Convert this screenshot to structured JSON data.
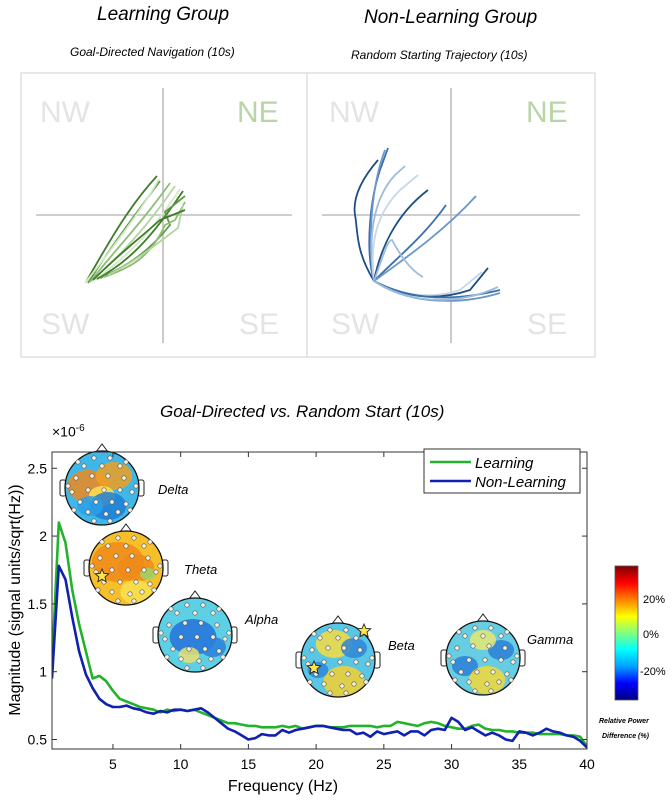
{
  "top": {
    "left": {
      "group_title": "Learning Group",
      "subtitle": "Goal-Directed Navigation (10s)",
      "quadrants": [
        "NW",
        "NE",
        "SW",
        "SE"
      ],
      "goal_quadrant": "NE",
      "trajectory_colors": [
        "#3f7d2a",
        "#5e9a45",
        "#8dbd74",
        "#b3d5a1",
        "#d5e8c9"
      ]
    },
    "right": {
      "group_title": "Non-Learning Group",
      "subtitle": "Random Starting Trajectory (10s)",
      "quadrants": [
        "NW",
        "NE",
        "SW",
        "SE"
      ],
      "goal_quadrant": "NE",
      "trajectory_colors": [
        "#1f4e84",
        "#3b6fa8",
        "#6a97c7",
        "#9dbbdc",
        "#c6d7ea"
      ]
    },
    "quadrant_label_color": "#e4e4e4",
    "goal_label_color": "#b7d6a6"
  },
  "chart_data": {
    "type": "line",
    "title": "Goal-Directed vs. Random Start (10s)",
    "xlabel": "Frequency (Hz)",
    "ylabel": "Magnitude   (signal units/sqrt(Hz))",
    "y_multiplier": "×10",
    "y_exponent": "-6",
    "xlim": [
      0.5,
      40
    ],
    "ylim": [
      0.43,
      2.62
    ],
    "xticks": [
      5,
      10,
      15,
      20,
      25,
      30,
      35,
      40
    ],
    "yticks": [
      0.5,
      1,
      1.5,
      2,
      2.5
    ],
    "ytick_labels": [
      "0.5",
      "1",
      "1.5",
      "2",
      "2.5"
    ],
    "legend_position": "top-right",
    "x": [
      0.5,
      1,
      1.5,
      2,
      2.5,
      3,
      3.5,
      4,
      4.5,
      5,
      5.5,
      6,
      6.5,
      7,
      7.5,
      8,
      8.5,
      9,
      9.5,
      10,
      10.5,
      11,
      11.5,
      12,
      12.5,
      13,
      13.5,
      14,
      14.5,
      15,
      15.5,
      16,
      16.5,
      17,
      17.5,
      18,
      18.5,
      19,
      19.5,
      20,
      20.5,
      21,
      21.5,
      22,
      22.5,
      23,
      23.5,
      24,
      24.5,
      25,
      25.5,
      26,
      26.5,
      27,
      27.5,
      28,
      28.5,
      29,
      29.5,
      30,
      30.5,
      31,
      31.5,
      32,
      32.5,
      33,
      33.5,
      34,
      34.5,
      35,
      35.5,
      36,
      36.5,
      37,
      37.5,
      38,
      38.5,
      39,
      39.5,
      40
    ],
    "series": [
      {
        "name": "Learning",
        "color": "#22b32a",
        "values": [
          1.05,
          2.1,
          1.95,
          1.6,
          1.35,
          1.15,
          0.95,
          0.97,
          0.93,
          0.86,
          0.8,
          0.78,
          0.76,
          0.74,
          0.73,
          0.72,
          0.7,
          0.72,
          0.71,
          0.72,
          0.71,
          0.72,
          0.7,
          0.68,
          0.66,
          0.64,
          0.62,
          0.62,
          0.61,
          0.6,
          0.6,
          0.59,
          0.59,
          0.59,
          0.6,
          0.59,
          0.6,
          0.58,
          0.59,
          0.6,
          0.6,
          0.59,
          0.59,
          0.59,
          0.6,
          0.6,
          0.6,
          0.6,
          0.59,
          0.6,
          0.6,
          0.63,
          0.62,
          0.61,
          0.6,
          0.62,
          0.63,
          0.62,
          0.6,
          0.59,
          0.58,
          0.58,
          0.6,
          0.61,
          0.58,
          0.57,
          0.57,
          0.56,
          0.56,
          0.55,
          0.55,
          0.55,
          0.54,
          0.54,
          0.54,
          0.54,
          0.53,
          0.53,
          0.52,
          0.45
        ]
      },
      {
        "name": "Non-Learning",
        "color": "#1020b0",
        "values": [
          0.95,
          1.78,
          1.68,
          1.4,
          1.15,
          0.98,
          0.88,
          0.8,
          0.76,
          0.74,
          0.74,
          0.75,
          0.73,
          0.72,
          0.7,
          0.69,
          0.71,
          0.7,
          0.72,
          0.72,
          0.71,
          0.72,
          0.73,
          0.7,
          0.66,
          0.62,
          0.58,
          0.56,
          0.53,
          0.5,
          0.51,
          0.54,
          0.53,
          0.53,
          0.57,
          0.55,
          0.57,
          0.58,
          0.59,
          0.6,
          0.6,
          0.59,
          0.58,
          0.57,
          0.57,
          0.54,
          0.55,
          0.52,
          0.56,
          0.54,
          0.55,
          0.56,
          0.53,
          0.56,
          0.56,
          0.53,
          0.57,
          0.58,
          0.57,
          0.66,
          0.63,
          0.57,
          0.59,
          0.56,
          0.53,
          0.55,
          0.53,
          0.5,
          0.49,
          0.56,
          0.55,
          0.53,
          0.55,
          0.58,
          0.56,
          0.55,
          0.53,
          0.52,
          0.49,
          0.44
        ]
      }
    ]
  },
  "topomaps": [
    {
      "label": "Delta",
      "palette": "mixed-warm",
      "stars": 0
    },
    {
      "label": "Theta",
      "palette": "warm",
      "stars": 1
    },
    {
      "label": "Alpha",
      "palette": "cool",
      "stars": 0
    },
    {
      "label": "Beta",
      "palette": "mixed",
      "stars": 2
    },
    {
      "label": "Gamma",
      "palette": "mixed-cool",
      "stars": 0
    }
  ],
  "colorbar": {
    "tick_labels": [
      "20%",
      "0%",
      "-20%"
    ],
    "caption_line1": "Relative Power",
    "caption_line2": "Difference (%)",
    "stops": [
      "#000080",
      "#0000ff",
      "#00a0ff",
      "#00ffff",
      "#80ff80",
      "#ffff00",
      "#ff8000",
      "#ff0000",
      "#800000"
    ]
  }
}
